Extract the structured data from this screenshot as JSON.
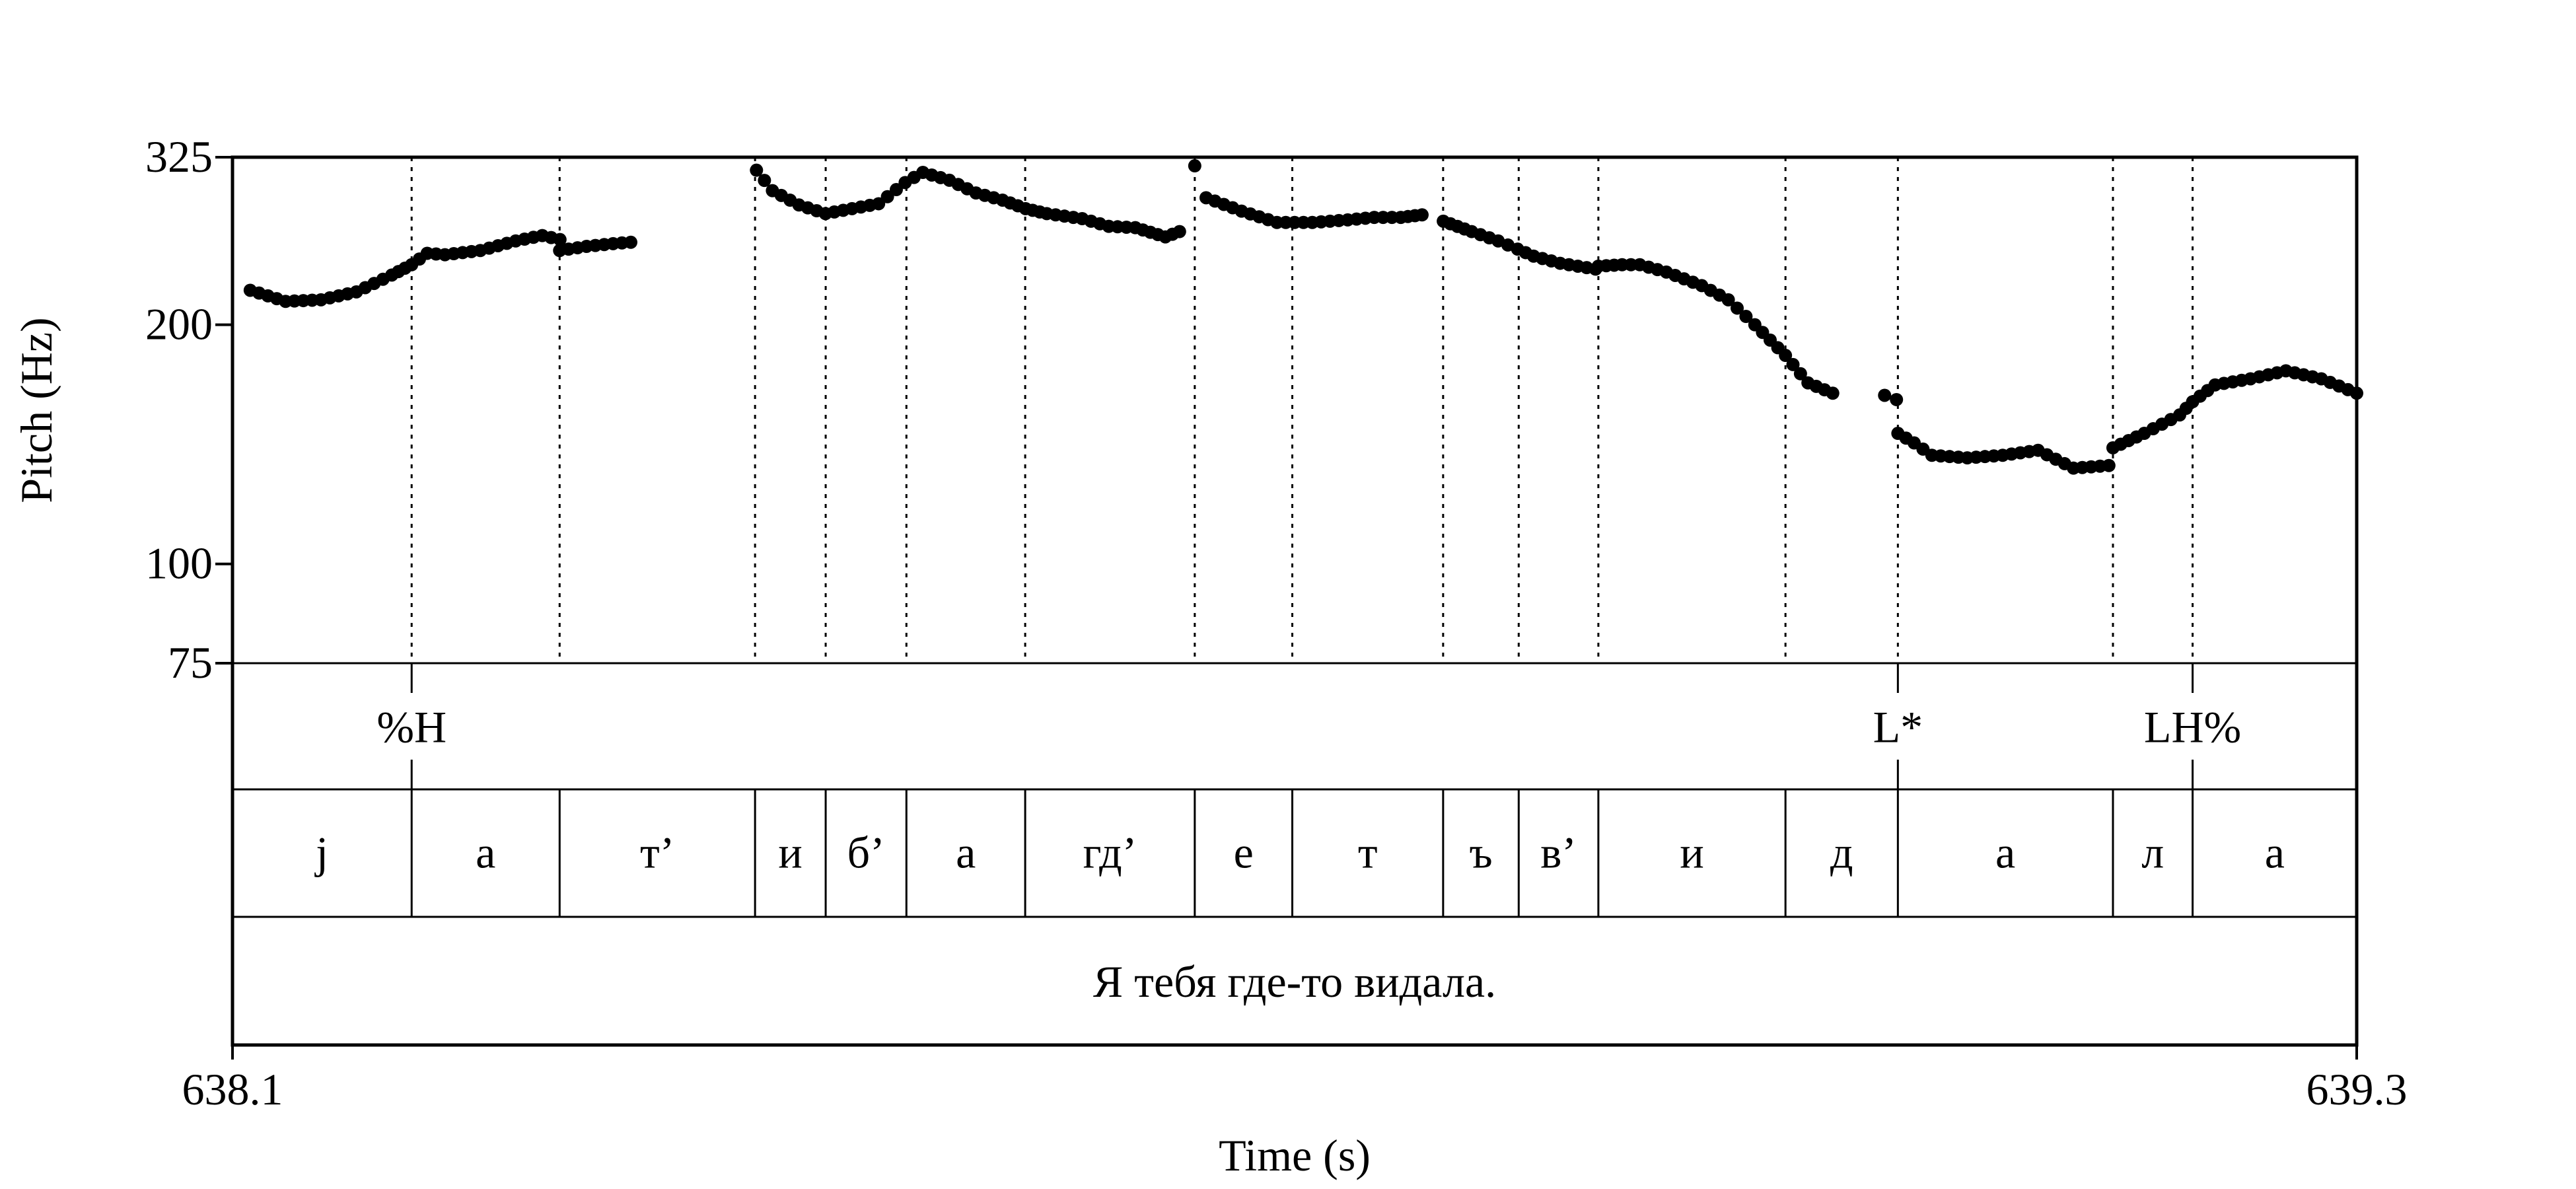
{
  "chart_data": {
    "type": "scatter",
    "xlabel": "Time (s)",
    "ylabel": "Pitch (Hz)",
    "xlim": [
      638.1,
      639.3
    ],
    "ylim": [
      75,
      325
    ],
    "y_scale": "log",
    "x_tick_labels": [
      "638.1",
      "639.3"
    ],
    "y_ticks": [
      75,
      100,
      200,
      325
    ],
    "y_tick_labels": [
      "75",
      "100",
      "200",
      "325"
    ],
    "grid": false,
    "dot_color": "#000000",
    "boundaries": [
      638.2012,
      638.2848,
      638.3952,
      638.4351,
      638.4807,
      638.5478,
      638.6436,
      638.6987,
      638.7839,
      638.8266,
      638.8716,
      638.9773,
      639.0408,
      639.1623,
      639.2073
    ],
    "tones": [
      {
        "label": "%H",
        "time": 638.2012
      },
      {
        "label": "L*",
        "time": 639.0408
      },
      {
        "label": "LH%",
        "time": 639.2073
      }
    ],
    "segments": [
      {
        "label": "j",
        "start": 638.1,
        "end": 638.2012
      },
      {
        "label": "а",
        "start": 638.2012,
        "end": 638.2848
      },
      {
        "label": "т’",
        "start": 638.2848,
        "end": 638.3952
      },
      {
        "label": "и",
        "start": 638.3952,
        "end": 638.4351
      },
      {
        "label": "б’",
        "start": 638.4351,
        "end": 638.4807
      },
      {
        "label": "а",
        "start": 638.4807,
        "end": 638.5478
      },
      {
        "label": "гд’",
        "start": 638.5478,
        "end": 638.6436
      },
      {
        "label": "е",
        "start": 638.6436,
        "end": 638.6987
      },
      {
        "label": "т",
        "start": 638.6987,
        "end": 638.7839
      },
      {
        "label": "ъ",
        "start": 638.7839,
        "end": 638.8266
      },
      {
        "label": "в’",
        "start": 638.8266,
        "end": 638.8716
      },
      {
        "label": "и",
        "start": 638.8716,
        "end": 638.9773
      },
      {
        "label": "д",
        "start": 638.9773,
        "end": 639.0408
      },
      {
        "label": "а",
        "start": 639.0408,
        "end": 639.1623
      },
      {
        "label": "л",
        "start": 639.1623,
        "end": 639.2073
      },
      {
        "label": "а",
        "start": 639.2073,
        "end": 639.3
      }
    ],
    "sentence": "Я тебя где-то видала.",
    "pitch_runs": [
      [
        [
          638.11,
          221
        ],
        [
          638.13,
          214
        ],
        [
          638.15,
          215
        ],
        [
          638.17,
          220
        ],
        [
          638.19,
          231
        ],
        [
          638.2012,
          238
        ],
        [
          638.21,
          246
        ],
        [
          638.22,
          245
        ],
        [
          638.24,
          248
        ],
        [
          638.26,
          255
        ],
        [
          638.275,
          259
        ],
        [
          638.285,
          256
        ]
      ],
      [
        [
          638.2848,
          248
        ],
        [
          638.3,
          251
        ],
        [
          638.315,
          253
        ],
        [
          638.325,
          254
        ]
      ],
      [
        [
          638.396,
          313
        ],
        [
          638.405,
          295
        ],
        [
          638.42,
          283
        ],
        [
          638.435,
          276
        ],
        [
          638.45,
          280
        ],
        [
          638.465,
          284
        ],
        [
          638.48,
          302
        ],
        [
          638.49,
          311
        ],
        [
          638.505,
          304
        ],
        [
          638.52,
          293
        ],
        [
          638.535,
          287
        ],
        [
          638.548,
          280
        ],
        [
          638.56,
          276
        ],
        [
          638.58,
          272
        ],
        [
          638.595,
          266
        ],
        [
          638.61,
          265
        ],
        [
          638.627,
          258
        ],
        [
          638.635,
          262
        ]
      ],
      [
        [
          638.6436,
          317
        ],
        [
          638.65,
          289
        ],
        [
          638.67,
          278
        ],
        [
          638.69,
          269
        ],
        [
          638.71,
          269
        ],
        [
          638.73,
          271
        ],
        [
          638.745,
          273
        ],
        [
          638.76,
          273
        ],
        [
          638.772,
          275
        ]
      ],
      [
        [
          638.784,
          270
        ],
        [
          638.8,
          262
        ],
        [
          638.815,
          255
        ],
        [
          638.826,
          249
        ],
        [
          638.835,
          244
        ],
        [
          638.85,
          239
        ],
        [
          638.87,
          235
        ],
        [
          638.8716,
          237
        ],
        [
          638.885,
          238
        ],
        [
          638.895,
          238
        ],
        [
          638.91,
          233
        ],
        [
          638.93,
          224
        ],
        [
          638.945,
          215
        ],
        [
          638.96,
          200
        ],
        [
          638.9773,
          183
        ],
        [
          638.99,
          169
        ],
        [
          639.004,
          164
        ]
      ],
      [
        [
          639.0333,
          163
        ],
        [
          639.04,
          161
        ]
      ],
      [
        [
          639.0408,
          146
        ],
        [
          639.05,
          142
        ],
        [
          639.06,
          137
        ],
        [
          639.08,
          136
        ],
        [
          639.1,
          137
        ],
        [
          639.12,
          139
        ],
        [
          639.14,
          132
        ],
        [
          639.16,
          133
        ]
      ],
      [
        [
          639.1623,
          140
        ],
        [
          639.18,
          146
        ],
        [
          639.2,
          154
        ],
        [
          639.2073,
          160
        ],
        [
          639.22,
          168
        ],
        [
          639.24,
          171
        ],
        [
          639.26,
          175
        ],
        [
          639.28,
          171
        ],
        [
          639.3,
          164
        ]
      ]
    ]
  }
}
